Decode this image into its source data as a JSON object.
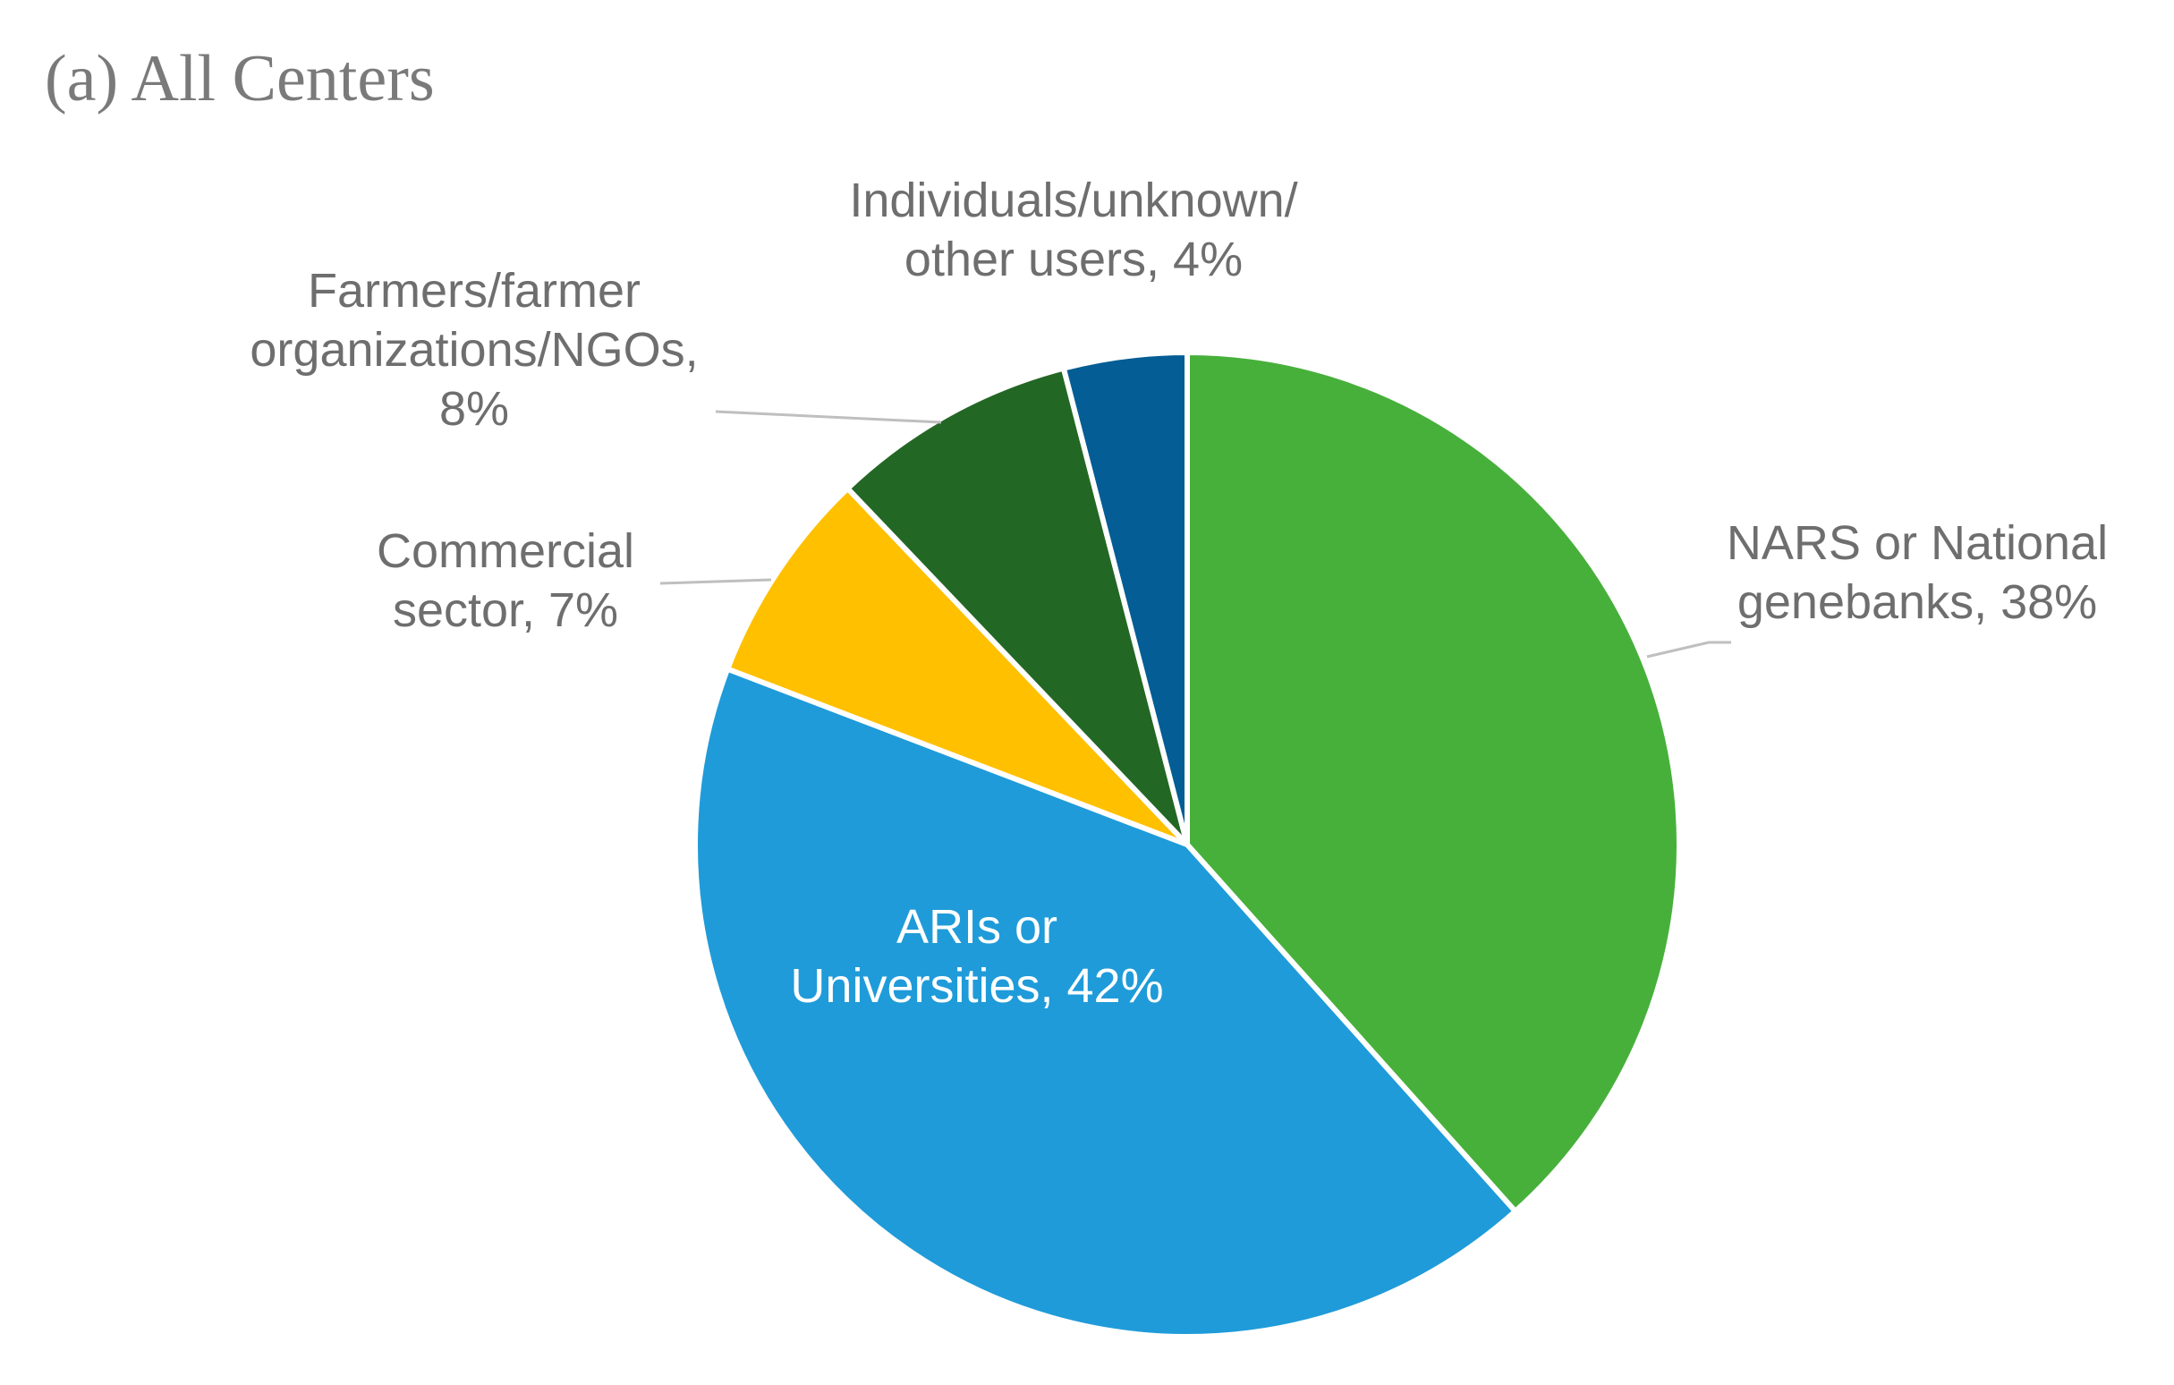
{
  "chart_data": {
    "type": "pie",
    "title": "(a) All Centers",
    "start_angle_deg": 0,
    "direction": "clockwise",
    "slices": [
      {
        "label_lines": [
          "NARS or National",
          "genebanks, 38%"
        ],
        "category": "NARS or National genebanks",
        "value": 38,
        "color": "#47b03b",
        "label_color": "#6e6e6e"
      },
      {
        "label_lines": [
          "ARIs or",
          "Universities, 42%"
        ],
        "category": "ARIs or Universities",
        "value": 42,
        "color": "#1f9bd9",
        "label_color": "#ffffff"
      },
      {
        "label_lines": [
          "Commercial",
          "sector, 7%"
        ],
        "category": "Commercial sector",
        "value": 7,
        "color": "#ffc000",
        "label_color": "#6e6e6e"
      },
      {
        "label_lines": [
          "Farmers/farmer",
          "organizations/NGOs,",
          "8%"
        ],
        "category": "Farmers/farmer organizations/NGOs",
        "value": 8,
        "color": "#236724",
        "label_color": "#6e6e6e"
      },
      {
        "label_lines": [
          "Individuals/unknown/",
          "other users, 4%"
        ],
        "category": "Individuals/unknown/other users",
        "value": 4,
        "color": "#045d94",
        "label_color": "#6e6e6e"
      }
    ],
    "leader_line_color": "#bfbfbf",
    "slice_border_color": "#ffffff"
  }
}
